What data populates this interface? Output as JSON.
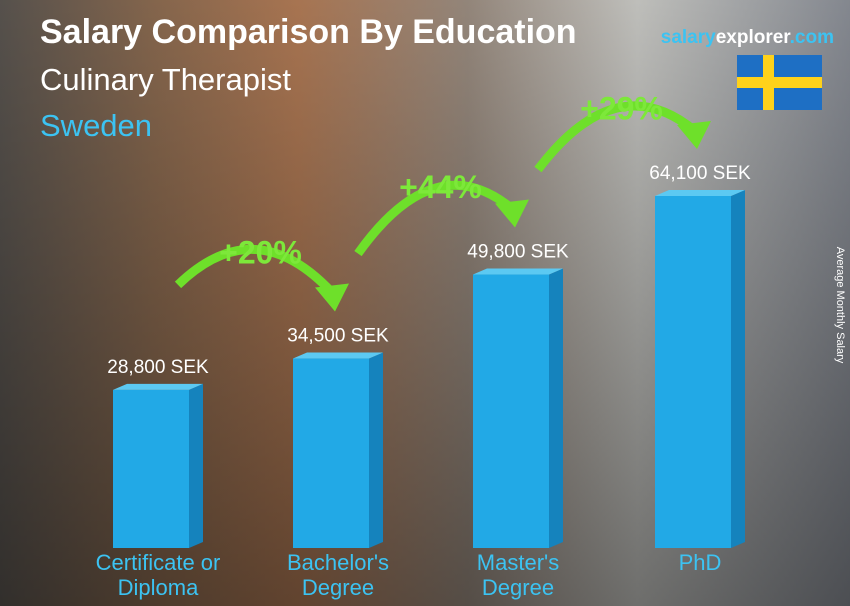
{
  "chart_data": {
    "type": "bar",
    "title": "Salary Comparison By Education",
    "subtitle": "Culinary Therapist",
    "country": "Sweden",
    "brand": [
      "salary",
      "explorer",
      ".com"
    ],
    "y_label": "Average Monthly Salary",
    "categories": [
      "Certificate or Diploma",
      "Bachelor's Degree",
      "Master's Degree",
      "PhD"
    ],
    "values": [
      28800,
      34500,
      49800,
      64100
    ],
    "value_labels": [
      "28,800 SEK",
      "34,500 SEK",
      "49,800 SEK",
      "64,100 SEK"
    ],
    "annotations": [
      "+20%",
      "+44%",
      "+29%"
    ],
    "color": "#22a9e6"
  }
}
